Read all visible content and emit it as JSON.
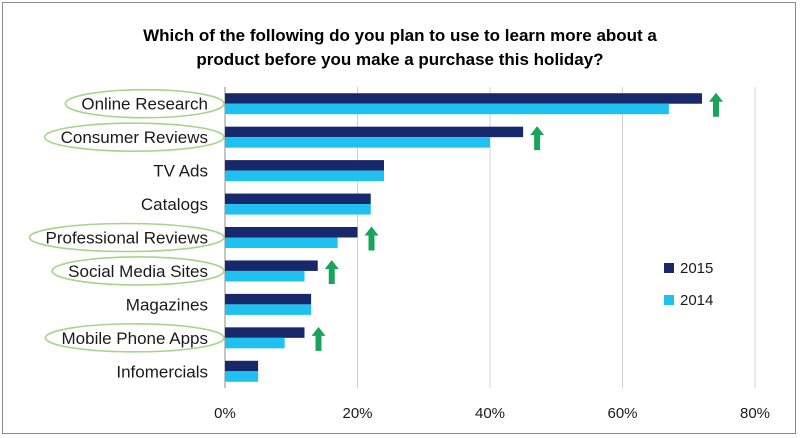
{
  "chart_data": {
    "type": "bar",
    "orientation": "horizontal",
    "title": "Which of the following do you plan to use to learn more about a product before you make a purchase this holiday?",
    "title_lines": [
      "Which of the following do you plan to use to learn more about a",
      "product before you make a purchase this holiday?"
    ],
    "categories": [
      "Online Research",
      "Consumer Reviews",
      "TV Ads",
      "Catalogs",
      "Professional Reviews",
      "Social Media Sites",
      "Magazines",
      "Mobile Phone Apps",
      "Infomercials"
    ],
    "series": [
      {
        "name": "2015",
        "color": "#17286b",
        "values": [
          72,
          45,
          24,
          22,
          20,
          14,
          13,
          12,
          5
        ]
      },
      {
        "name": "2014",
        "color": "#1fc1f1",
        "values": [
          67,
          40,
          24,
          22,
          17,
          12,
          13,
          9,
          5
        ]
      }
    ],
    "xlim": [
      0,
      80
    ],
    "xticks": [
      0,
      20,
      40,
      60,
      80
    ],
    "xtick_labels": [
      "0%",
      "20%",
      "40%",
      "60%",
      "80%"
    ],
    "grid": true,
    "legend_position": "right",
    "highlighted_categories": [
      "Online Research",
      "Consumer Reviews",
      "Professional Reviews",
      "Social Media Sites",
      "Mobile Phone Apps"
    ],
    "highlight_color": "#a6d48a",
    "arrow_color": "#1aa35c"
  }
}
